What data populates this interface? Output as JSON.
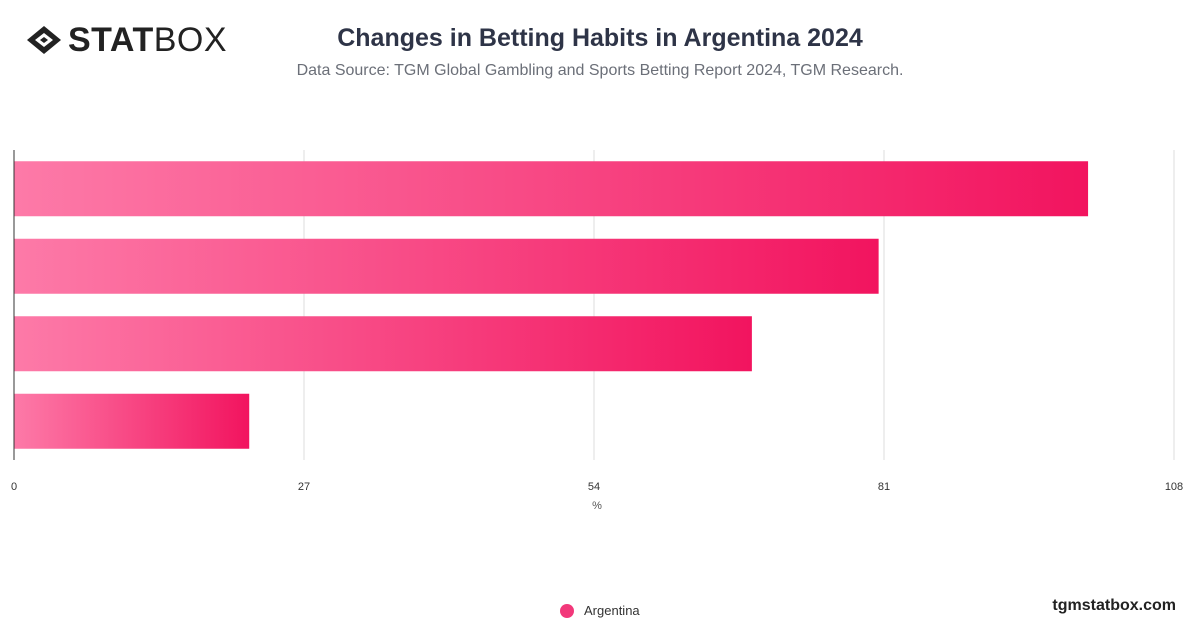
{
  "header": {
    "logo_bold": "STAT",
    "logo_light": "BOX",
    "title": "Changes in Betting Habits in Argentina 2024",
    "subtitle": "Data Source: TGM Global Gambling and Sports Betting Report 2024, TGM Research."
  },
  "footer": {
    "site": "tgmstatbox.com"
  },
  "colors": {
    "bar_start": "#fd7aa8",
    "bar_end": "#f2145f",
    "grid": "#dddddd",
    "axis": "#333333",
    "text": "#333333"
  },
  "chart_data": {
    "type": "bar",
    "orientation": "horizontal",
    "categories": [
      "",
      "",
      "",
      ""
    ],
    "series": [
      {
        "name": "Argentina",
        "values": [
          100,
          80.5,
          68.7,
          21.9
        ]
      }
    ],
    "xlim": [
      0,
      108
    ],
    "xticks": [
      0,
      27,
      54,
      81,
      108
    ],
    "xlabel": "%",
    "ylabel": "",
    "grid": true,
    "legend": "bottom-center"
  }
}
